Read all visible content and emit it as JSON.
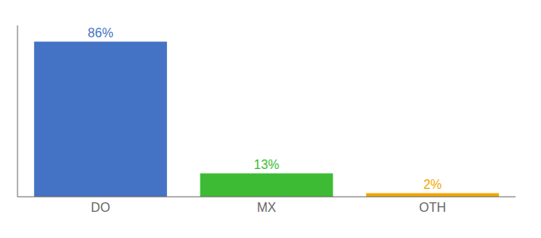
{
  "chart_data": {
    "type": "bar",
    "categories": [
      "DO",
      "MX",
      "OTH"
    ],
    "values": [
      86,
      13,
      2
    ],
    "value_labels": [
      "86%",
      "13%",
      "2%"
    ],
    "colors": [
      "#4472c4",
      "#3dbb35",
      "#f4a600"
    ],
    "ylim": [
      0,
      95
    ],
    "data_labels": true,
    "tick_labels": "x",
    "grid": false
  }
}
